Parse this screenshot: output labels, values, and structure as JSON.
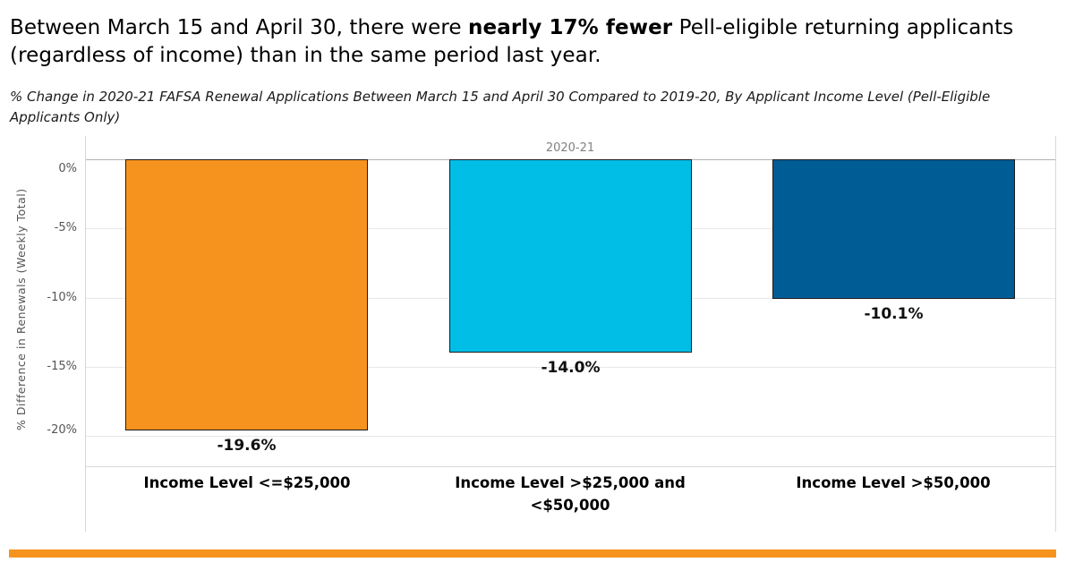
{
  "headline": {
    "part1": "Between March 15 and April 30, there were ",
    "bold": "nearly 17% fewer",
    "part2": " Pell-eligible returning applicants (regardless of income) than in the same period last year."
  },
  "subtitle": "% Change in 2020-21 FAFSA Renewal Applications Between March 15 and April 30 Compared to 2019-20, By Applicant Income Level (Pell-Eligible Applicants Only)",
  "chart_data": {
    "type": "bar",
    "column_header": "2020-21",
    "categories": [
      "Income Level <=$25,000",
      "Income Level >$25,000 and <$50,000",
      "Income Level >$50,000"
    ],
    "values": [
      -19.6,
      -14.0,
      -10.1
    ],
    "value_labels": [
      "-19.6%",
      "-14.0%",
      "-10.1%"
    ],
    "bar_colors": [
      "#F6931E",
      "#00BEE6",
      "#005C94"
    ],
    "ylabel": "% Difference in Renewals (Weekly Total)",
    "yticks": [
      "0%",
      "-5%",
      "-10%",
      "-15%",
      "-20%"
    ],
    "ytick_values": [
      0,
      -5,
      -10,
      -15,
      -20
    ],
    "ylim": [
      -20,
      0
    ],
    "grid": true,
    "legend_position": "none"
  },
  "footer": {
    "accent_color": "#F6931E"
  }
}
